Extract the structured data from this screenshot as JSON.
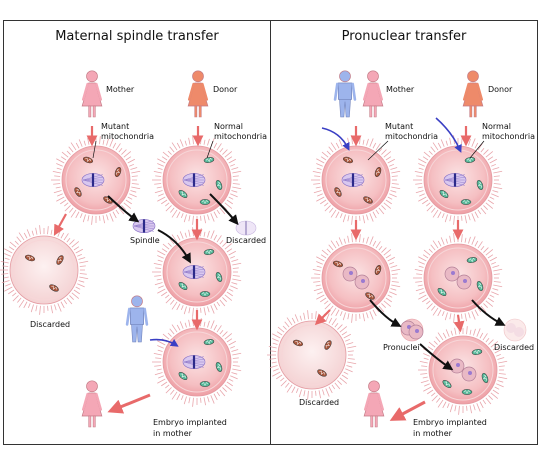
{
  "panels": {
    "left": {
      "title": "Maternal spindle transfer",
      "mother": "Mother",
      "donor": "Donor",
      "mutant_1": "Mutant",
      "mutant_2": "mitochondria",
      "normal_1": "Normal",
      "normal_2": "mitochondria",
      "spindle": "Spindle",
      "discarded_right": "Discarded",
      "discarded_left": "Discarded",
      "implanted_1": "Embryo implanted",
      "implanted_2": "in mother"
    },
    "right": {
      "title": "Pronuclear transfer",
      "mother": "Mother",
      "donor": "Donor",
      "mutant_1": "Mutant",
      "mutant_2": "mitochondria",
      "normal_1": "Normal",
      "normal_2": "mitochondria",
      "pronuclei": "Pronuclei",
      "discarded_right": "Discarded",
      "discarded_left": "Discarded",
      "implanted_1": "Embryo implanted",
      "implanted_2": "in mother"
    }
  },
  "colors": {
    "border": "#333333",
    "female_pink": "#f4a7b6",
    "donor_orange": "#ee8a6a",
    "male_blue": "#9db4ec",
    "cell_pink": "#f6c4c7",
    "arrow_red": "#e86a6a",
    "mito_green": "#58b99a",
    "mito_brown": "#a8563c"
  }
}
